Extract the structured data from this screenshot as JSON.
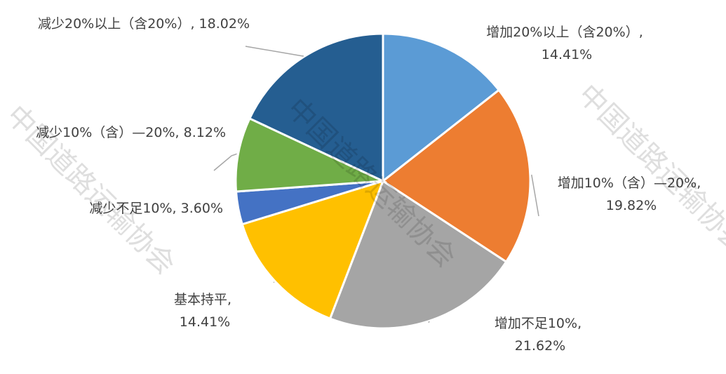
{
  "chart_data": {
    "type": "pie",
    "categories": [
      "增加20%以上（含20%）",
      "增加10%（含）—20%",
      "增加不足10%",
      "基本持平",
      "减少不足10%",
      "减少10%（含）—20%",
      "减少20%以上（含20%）"
    ],
    "values": [
      14.41,
      19.82,
      21.62,
      14.41,
      3.6,
      8.12,
      18.02
    ],
    "value_labels": [
      "14.41%",
      "19.82%",
      "21.62%",
      "14.41%",
      "3.60%",
      "8.12%",
      "18.02%"
    ],
    "label_separator": ", ",
    "colors": [
      "#5b9bd5",
      "#ed7d31",
      "#a5a5a5",
      "#ffc000",
      "#4472c4",
      "#70ad47",
      "#255e91"
    ],
    "watermark": "中国道路运输协会"
  }
}
